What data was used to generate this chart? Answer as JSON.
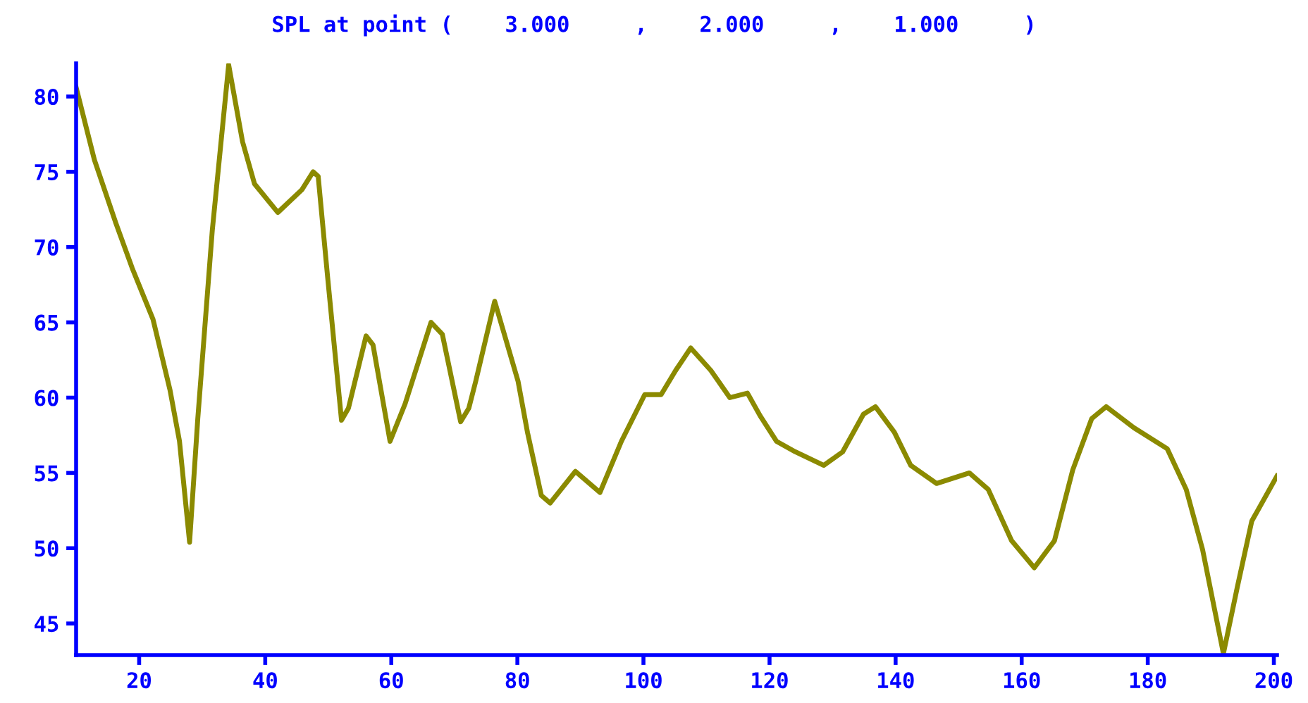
{
  "chart_data": {
    "type": "line",
    "title": "SPL at point (    3.000     ,    2.000     ,    1.000     )",
    "x": [
      10,
      12.9,
      16.3,
      18.9,
      22.2,
      24.9,
      26.4,
      28.0,
      29.3,
      31.6,
      34.2,
      36.4,
      38.3,
      42.0,
      45.8,
      47.6,
      48.4,
      49.9,
      52.1,
      53.2,
      56.0,
      57.1,
      59.8,
      62.2,
      66.3,
      68.1,
      71.0,
      72.3,
      73.4,
      76.4,
      80.1,
      81.6,
      83.8,
      85.2,
      89.2,
      93.1,
      96.5,
      100.2,
      102.8,
      105.1,
      107.5,
      110.7,
      113.7,
      116.5,
      118.5,
      121.1,
      124.1,
      128.6,
      131.6,
      134.9,
      136.8,
      139.8,
      142.4,
      146.5,
      151.7,
      154.7,
      158.4,
      162.0,
      165.2,
      168.1,
      171.1,
      173.4,
      177.8,
      183.1,
      186.1,
      188.7,
      192.0,
      194.2,
      196.5,
      200.5
    ],
    "series": [
      {
        "color": "#8b8a00",
        "values": [
          80.6,
          75.8,
          71.6,
          68.6,
          65.2,
          60.5,
          57.1,
          50.4,
          58.6,
          71.1,
          82.1,
          77.0,
          74.2,
          72.3,
          73.8,
          75.0,
          74.7,
          68.0,
          58.5,
          59.3,
          64.1,
          63.5,
          57.1,
          59.6,
          65.0,
          64.2,
          58.4,
          59.3,
          61.1,
          66.4,
          61.1,
          57.7,
          53.5,
          53.0,
          55.1,
          53.7,
          57.1,
          60.2,
          60.2,
          61.8,
          63.3,
          61.8,
          60.0,
          60.3,
          58.8,
          57.1,
          56.4,
          55.5,
          56.4,
          58.9,
          59.4,
          57.7,
          55.5,
          54.3,
          55.0,
          53.9,
          50.5,
          48.7,
          50.5,
          55.2,
          58.6,
          59.4,
          58.0,
          56.6,
          53.9,
          49.9,
          43.0,
          47.4,
          51.8,
          54.8
        ]
      }
    ],
    "xlim": [
      10,
      200.5
    ],
    "ylim": [
      42.9,
      82.2
    ],
    "xticks": [
      20,
      40,
      60,
      80,
      100,
      120,
      140,
      160,
      180,
      200
    ],
    "yticks": [
      45,
      50,
      55,
      60,
      65,
      70,
      75,
      80
    ],
    "grid": false,
    "marker": "none",
    "line_style": "solid"
  }
}
